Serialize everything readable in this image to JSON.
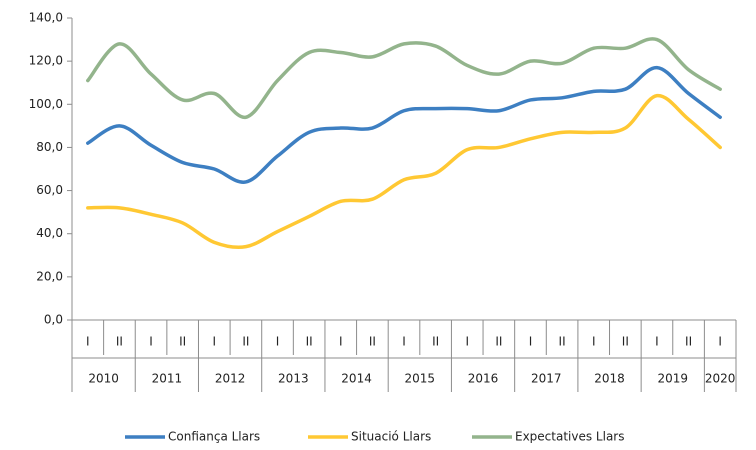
{
  "chart_data": {
    "type": "line",
    "categories": [
      "I",
      "II",
      "I",
      "II",
      "I",
      "II",
      "I",
      "II",
      "I",
      "II",
      "I",
      "II",
      "I",
      "II",
      "I",
      "II",
      "I",
      "II",
      "I",
      "II",
      "I"
    ],
    "category_groups": [
      "2010",
      "2011",
      "2012",
      "2013",
      "2014",
      "2015",
      "2016",
      "2017",
      "2018",
      "2019",
      "2020"
    ],
    "series": [
      {
        "name": "Confiança Llars",
        "color": "#3d7fc2",
        "values": [
          82,
          90,
          81,
          73,
          70,
          64,
          76,
          87,
          89,
          89,
          97,
          98,
          98,
          97,
          102,
          103,
          106,
          107,
          117,
          105,
          94
        ]
      },
      {
        "name": "Situació Llars",
        "color": "#ffc833",
        "values": [
          52,
          52,
          49,
          45,
          36,
          34,
          41,
          48,
          55,
          56,
          65,
          68,
          79,
          80,
          84,
          87,
          87,
          89,
          104,
          93,
          80
        ]
      },
      {
        "name": "Expectatives Llars",
        "color": "#93b48c",
        "values": [
          111,
          128,
          114,
          102,
          105,
          94,
          111,
          124,
          124,
          122,
          128,
          127,
          118,
          114,
          120,
          119,
          126,
          126,
          130,
          116,
          107
        ]
      }
    ],
    "ylim": [
      0,
      140
    ],
    "yticks": [
      {
        "value": 0,
        "label": "0,0"
      },
      {
        "value": 20,
        "label": "20,0"
      },
      {
        "value": 40,
        "label": "40,0"
      },
      {
        "value": 60,
        "label": "60,0"
      },
      {
        "value": 80,
        "label": "80,0"
      },
      {
        "value": 100,
        "label": "100,0"
      },
      {
        "value": 120,
        "label": "120,0"
      },
      {
        "value": 140,
        "label": "140,0"
      }
    ],
    "grid": false,
    "legend": "bottom"
  }
}
